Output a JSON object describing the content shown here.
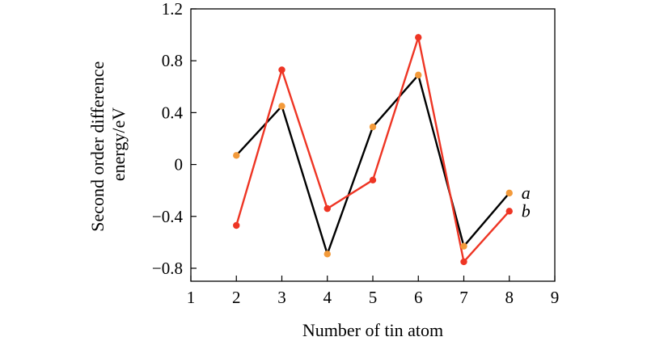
{
  "chart_data": {
    "type": "line",
    "title": "",
    "xlabel": "Number of tin atom",
    "ylabel_lines": [
      "Second order difference",
      "energy/eV"
    ],
    "xlim": [
      1,
      9
    ],
    "ylim": [
      -0.9,
      1.2
    ],
    "x_ticks": [
      1,
      2,
      3,
      4,
      5,
      6,
      7,
      8,
      9
    ],
    "y_ticks": [
      -0.8,
      -0.4,
      0,
      0.4,
      0.8,
      1.2
    ],
    "x_tick_labels": [
      "1",
      "2",
      "3",
      "4",
      "5",
      "6",
      "7",
      "8",
      "9"
    ],
    "y_tick_labels": [
      "−0.8",
      "−0.4",
      "0",
      "0.4",
      "0.8",
      "1.2"
    ],
    "grid": false,
    "legend": "inline-right",
    "series": [
      {
        "name": "a",
        "line_color": "#000000",
        "marker_color": "#f39a3a",
        "x": [
          2,
          3,
          4,
          5,
          6,
          7,
          8
        ],
        "y": [
          0.07,
          0.45,
          -0.69,
          0.29,
          0.69,
          -0.63,
          -0.22
        ]
      },
      {
        "name": "b",
        "line_color": "#ee3524",
        "marker_color": "#ee3524",
        "x": [
          2,
          3,
          4,
          5,
          6,
          7,
          8
        ],
        "y": [
          -0.47,
          0.73,
          -0.34,
          -0.12,
          0.98,
          -0.75,
          -0.36
        ]
      }
    ]
  }
}
